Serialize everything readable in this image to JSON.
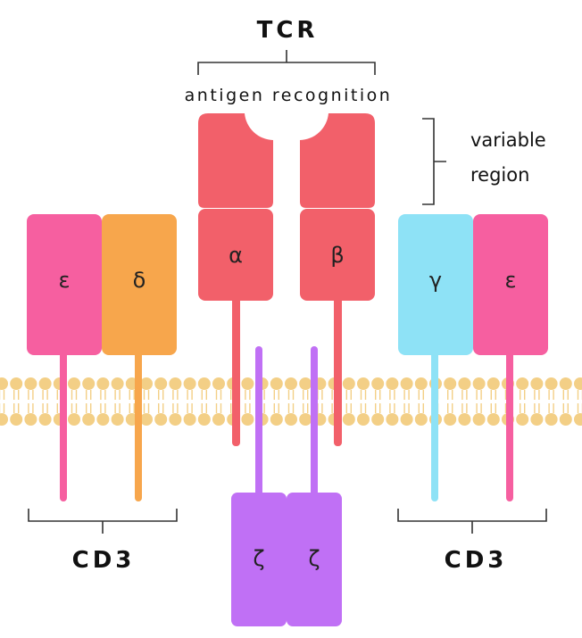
{
  "tcr": {
    "title": "TCR",
    "bracket_label": "antigen recognition",
    "variable_label_line1": "variable",
    "variable_label_line2": "region",
    "chain_alpha": "α",
    "chain_beta": "β"
  },
  "cd3_left": {
    "label": "CD3",
    "chain_epsilon": "ε",
    "chain_delta": "δ"
  },
  "cd3_right": {
    "label": "CD3",
    "chain_gamma": "γ",
    "chain_epsilon": "ε"
  },
  "zeta": {
    "chain_1": "ζ",
    "chain_2": "ζ"
  },
  "colors": {
    "tcr": "#f2606a",
    "epsilon": "#f65fa0",
    "delta": "#f7a64c",
    "gamma": "#8ee2f6",
    "zeta": "#c070f5",
    "membrane": "#f3cf86"
  }
}
